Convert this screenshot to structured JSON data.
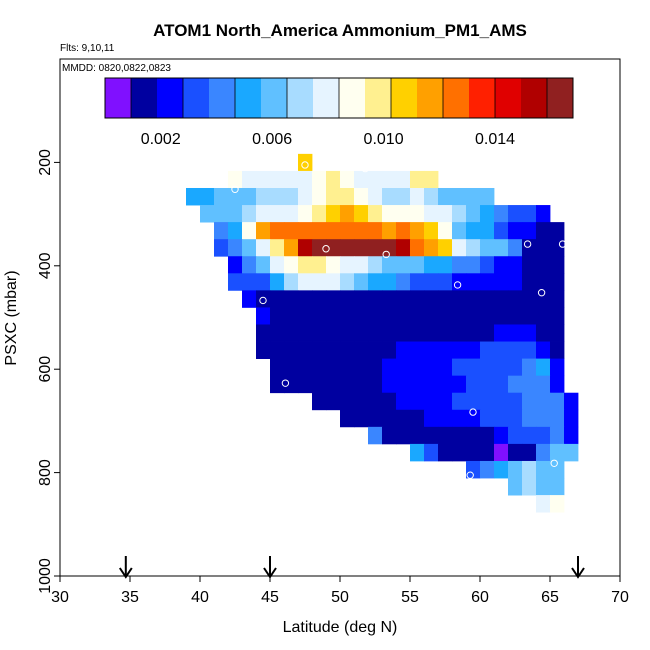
{
  "chart_data": {
    "type": "heatmap",
    "title": "ATOM1 North_America Ammonium_PM1_AMS",
    "flights_label": "Flts: 9,10,11",
    "dates_label": "MMDD: 0820,0822,0823",
    "xlabel": "Latitude (deg N)",
    "ylabel": "PSXC (mbar)",
    "xlim": [
      30,
      70
    ],
    "ylim": [
      1000,
      0
    ],
    "xticks": [
      "30",
      "35",
      "40",
      "45",
      "50",
      "55",
      "60",
      "65",
      "70"
    ],
    "yticks": [
      "200",
      "400",
      "600",
      "800",
      "1000"
    ],
    "colorbar": {
      "range": [
        0,
        0.0168
      ],
      "ticks": [
        "0.002",
        "0.006",
        "0.010",
        "0.014"
      ],
      "tick_values": [
        0.002,
        0.006,
        0.01,
        0.014
      ],
      "colors": [
        "#8010ff",
        "#0000a0",
        "#0000ff",
        "#1a50ff",
        "#3a86ff",
        "#1aa8ff",
        "#60c0ff",
        "#a8dcff",
        "#e6f4ff",
        "#fffff0",
        "#fff090",
        "#ffd000",
        "#ffa000",
        "#ff7000",
        "#ff2000",
        "#e00000",
        "#b00000",
        "#902020"
      ]
    },
    "cell_grid": {
      "lat_step": 1.0,
      "p_step": 33
    },
    "rows": [
      {
        "p": 200,
        "lat0": 47,
        "vals": [
          0.011
        ]
      },
      {
        "p": 233,
        "lat0": 42,
        "vals": [
          0.0085,
          0.008,
          0.0082,
          0.0078,
          0.0076,
          0.008,
          0.0088,
          0.0095,
          0.0085,
          0.0077,
          0.0075,
          0.0079,
          0.0082,
          0.0095,
          0.01
        ]
      },
      {
        "p": 266,
        "lat0": 39,
        "vals": [
          0.0055,
          0.005,
          0.006,
          0.0062,
          0.0064,
          0.0068,
          0.0072,
          0.007,
          0.0078,
          0.009,
          0.0098,
          0.01,
          0.0092,
          0.0076,
          0.0068,
          0.0074,
          0.008,
          0.007,
          0.0062,
          0.006,
          0.0058,
          0.0056
        ]
      },
      {
        "p": 299,
        "lat0": 40,
        "vals": [
          0.0058,
          0.0056,
          0.0062,
          0.0072,
          0.0076,
          0.0078,
          0.0082,
          0.0086,
          0.01,
          0.0108,
          0.0112,
          0.0106,
          0.0102,
          0.009,
          0.0084,
          0.0092,
          0.0082,
          0.0076,
          0.0072,
          0.0062,
          0.005,
          0.004,
          0.003,
          0.0028,
          0.0026
        ]
      },
      {
        "p": 332,
        "lat0": 41,
        "vals": [
          0.004,
          0.005,
          0.0085,
          0.0115,
          0.0128,
          0.0126,
          0.013,
          0.0124,
          0.0128,
          0.0122,
          0.013,
          0.0124,
          0.0118,
          0.0125,
          0.0112,
          0.0104,
          0.009,
          0.006,
          0.0054,
          0.0048,
          0.003,
          0.0026,
          0.0024,
          0.0018,
          0.001
        ]
      },
      {
        "p": 365,
        "lat0": 41,
        "vals": [
          0.0035,
          0.004,
          0.006,
          0.008,
          0.0098,
          0.0118,
          0.0155,
          0.0162,
          0.0166,
          0.0165,
          0.0166,
          0.0164,
          0.016,
          0.015,
          0.013,
          0.012,
          0.0106,
          0.008,
          0.0066,
          0.006,
          0.0058,
          0.0042,
          0.0016,
          0.0016,
          0.0012
        ]
      },
      {
        "p": 398,
        "lat0": 42,
        "vals": [
          0.0026,
          0.004,
          0.006,
          0.0082,
          0.0092,
          0.0096,
          0.0094,
          0.0088,
          0.0082,
          0.0078,
          0.0072,
          0.0064,
          0.006,
          0.0057,
          0.0055,
          0.005,
          0.0044,
          0.004,
          0.003,
          0.0026,
          0.002,
          0.0016,
          0.0016,
          0.0012
        ]
      },
      {
        "p": 431,
        "lat0": 42,
        "vals": [
          0.0028,
          0.003,
          0.0035,
          0.005,
          0.0068,
          0.0078,
          0.008,
          0.0082,
          0.0074,
          0.006,
          0.0054,
          0.0048,
          0.0042,
          0.0036,
          0.003,
          0.0028,
          0.0026,
          0.0026,
          0.0026,
          0.0022,
          0.002,
          0.0018,
          0.0016,
          0.0012
        ]
      },
      {
        "p": 464,
        "lat0": 43,
        "vals": [
          0.0024,
          0.0018,
          0.0014,
          0.0014,
          0.0014,
          0.0016,
          0.0016,
          0.0018,
          0.0018,
          0.0018,
          0.0016,
          0.0016,
          0.0016,
          0.0016,
          0.0016,
          0.0016,
          0.0016,
          0.0016,
          0.0016,
          0.0016,
          0.0016,
          0.0016,
          0.0012
        ]
      },
      {
        "p": 497,
        "lat0": 44,
        "vals": [
          0.002,
          0.0014,
          0.0014,
          0.0014,
          0.0014,
          0.0014,
          0.0014,
          0.0014,
          0.0014,
          0.0014,
          0.0014,
          0.0014,
          0.0014,
          0.0014,
          0.0014,
          0.0014,
          0.0014,
          0.0014,
          0.0014,
          0.0014,
          0.0016,
          0.0014
        ]
      },
      {
        "p": 530,
        "lat0": 44,
        "vals": [
          0.0014,
          0.0014,
          0.0014,
          0.0014,
          0.0016,
          0.0016,
          0.0016,
          0.0016,
          0.0016,
          0.0018,
          0.0018,
          0.0018,
          0.0018,
          0.0018,
          0.0018,
          0.0018,
          0.0018,
          0.002,
          0.002,
          0.002,
          0.0018,
          0.0014
        ]
      },
      {
        "p": 563,
        "lat0": 44,
        "vals": [
          0.0014,
          0.0014,
          0.0014,
          0.0014,
          0.0014,
          0.0016,
          0.0016,
          0.0018,
          0.0018,
          0.0018,
          0.002,
          0.0022,
          0.0024,
          0.0024,
          0.0024,
          0.0026,
          0.0028,
          0.003,
          0.003,
          0.0028,
          0.002,
          0.0014
        ]
      },
      {
        "p": 596,
        "lat0": 45,
        "vals": [
          0.0014,
          0.0014,
          0.0014,
          0.0014,
          0.0014,
          0.0016,
          0.0016,
          0.0018,
          0.002,
          0.0022,
          0.0024,
          0.0024,
          0.0026,
          0.0028,
          0.003,
          0.0032,
          0.0034,
          0.0036,
          0.004,
          0.0048,
          0.002
        ]
      },
      {
        "p": 629,
        "lat0": 45,
        "vals": [
          0.0014,
          0.0014,
          0.0014,
          0.0014,
          0.0014,
          0.0016,
          0.0018,
          0.0018,
          0.002,
          0.002,
          0.0022,
          0.0024,
          0.0026,
          0.0026,
          0.0028,
          0.0032,
          0.0036,
          0.004,
          0.0042,
          0.0046,
          0.002
        ]
      },
      {
        "p": 662,
        "lat0": 48,
        "vals": [
          0.0014,
          0.0014,
          0.0016,
          0.0016,
          0.0016,
          0.0018,
          0.002,
          0.002,
          0.0024,
          0.0026,
          0.0028,
          0.0028,
          0.003,
          0.0032,
          0.0034,
          0.0038,
          0.0042,
          0.0046,
          0.002
        ]
      },
      {
        "p": 695,
        "lat0": 50,
        "vals": [
          0.0012,
          0.0014,
          0.0014,
          0.0016,
          0.0018,
          0.0018,
          0.002,
          0.002,
          0.0022,
          0.0026,
          0.003,
          0.0034,
          0.0036,
          0.004,
          0.0044,
          0.0046,
          0.002
        ]
      },
      {
        "p": 728,
        "lat0": 52,
        "vals": [
          0.004,
          0.0016,
          0.0012,
          0.0012,
          0.0012,
          0.0014,
          0.0014,
          0.0016,
          0.0018,
          0.0022,
          0.0028,
          0.0032,
          0.0036,
          0.004,
          0.0024
        ]
      },
      {
        "p": 761,
        "lat0": 55,
        "vals": [
          0.005,
          0.003,
          0.0016,
          0.0014,
          0.0014,
          0.0016,
          0.0008,
          0.0012,
          0.0016,
          0.004,
          0.006,
          0.0064
        ]
      },
      {
        "p": 794,
        "lat0": 59,
        "vals": [
          0.003,
          0.004,
          0.005,
          0.006,
          0.007,
          0.006,
          0.0058
        ]
      },
      {
        "p": 827,
        "lat0": 62,
        "vals": [
          0.0064,
          0.0068,
          0.0056,
          0.006
        ]
      },
      {
        "p": 860,
        "lat0": 64,
        "vals": [
          0.008,
          0.0088
        ]
      }
    ],
    "flight_points": [
      {
        "lat": 47.5,
        "p": 205
      },
      {
        "lat": 51.8,
        "p": 212
      },
      {
        "lat": 42.5,
        "p": 252
      },
      {
        "lat": 39.0,
        "p": 305
      },
      {
        "lat": 49.0,
        "p": 367
      },
      {
        "lat": 53.3,
        "p": 378
      },
      {
        "lat": 63.4,
        "p": 358
      },
      {
        "lat": 65.9,
        "p": 358
      },
      {
        "lat": 58.4,
        "p": 437
      },
      {
        "lat": 64.4,
        "p": 452
      },
      {
        "lat": 44.5,
        "p": 467
      },
      {
        "lat": 46.1,
        "p": 627
      },
      {
        "lat": 59.5,
        "p": 683
      },
      {
        "lat": 65.3,
        "p": 782
      },
      {
        "lat": 59.3,
        "p": 805
      },
      {
        "lat": 65.1,
        "p": 948
      }
    ],
    "arrows_lat": [
      34.7,
      45.0,
      67.0
    ]
  }
}
